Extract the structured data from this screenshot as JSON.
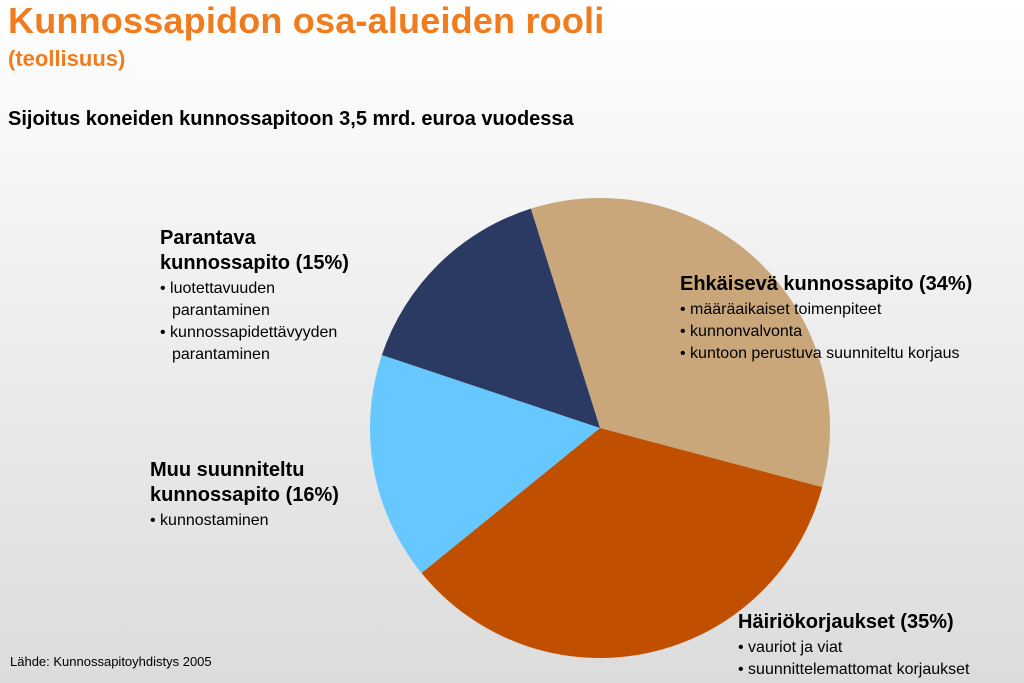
{
  "header": {
    "title": "Kunnossapidon osa-alueiden rooli",
    "subtitle": "(teollisuus)",
    "headline": "Sijoitus koneiden kunnossapitoon 3,5 mrd. euroa vuodessa"
  },
  "source": "Lähde: Kunnossapitoyhdistys 2005",
  "chart_data": {
    "type": "pie",
    "slices": [
      {
        "label": "Ehkäisevä kunnossapito (34%)",
        "value": 34,
        "color": "#c9a77a",
        "bullets": [
          "määräaikaiset toimenpiteet",
          "kunnonvalvonta",
          "kuntoon perustuva suunniteltu korjaus"
        ]
      },
      {
        "label": "Häiriökorjaukset (35%)",
        "value": 35,
        "color": "#c05000",
        "bullets": [
          "vauriot ja viat",
          "suunnittelemattomat korjaukset"
        ]
      },
      {
        "label": "Muu suunniteltu kunnossapito (16%)",
        "value": 16,
        "color": "#66c8ff",
        "bullets": [
          "kunnostaminen"
        ]
      },
      {
        "label": "Parantava kunnossapito (15%)",
        "value": 15,
        "color": "#2b3a63",
        "bullets": [
          "luotettavuuden parantaminen",
          "kunnossapidettävyyden parantaminen"
        ]
      }
    ]
  }
}
